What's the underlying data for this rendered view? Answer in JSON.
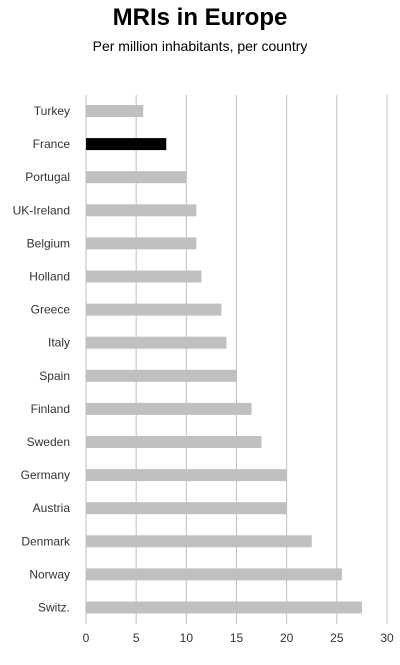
{
  "chart_data": {
    "type": "bar",
    "orientation": "horizontal",
    "title": "MRIs in Europe",
    "subtitle": "Per million inhabitants, per country",
    "categories": [
      "Turkey",
      "France",
      "Portugal",
      "UK-Ireland",
      "Belgium",
      "Holland",
      "Greece",
      "Italy",
      "Spain",
      "Finland",
      "Sweden",
      "Germany",
      "Austria",
      "Denmark",
      "Norway",
      "Switz."
    ],
    "values": [
      5.7,
      8,
      10,
      11,
      11,
      11.5,
      13.5,
      14,
      15,
      16.5,
      17.5,
      20,
      20,
      22.5,
      25.5,
      27.5
    ],
    "highlight": "France",
    "xlim": [
      0,
      30
    ],
    "xticks": [
      0,
      5,
      10,
      15,
      20,
      25,
      30
    ],
    "grid": true,
    "colors": {
      "bar": "#c0c0c0",
      "highlight": "#000000",
      "grid": "#bfbfbf",
      "text": "#333333"
    }
  }
}
